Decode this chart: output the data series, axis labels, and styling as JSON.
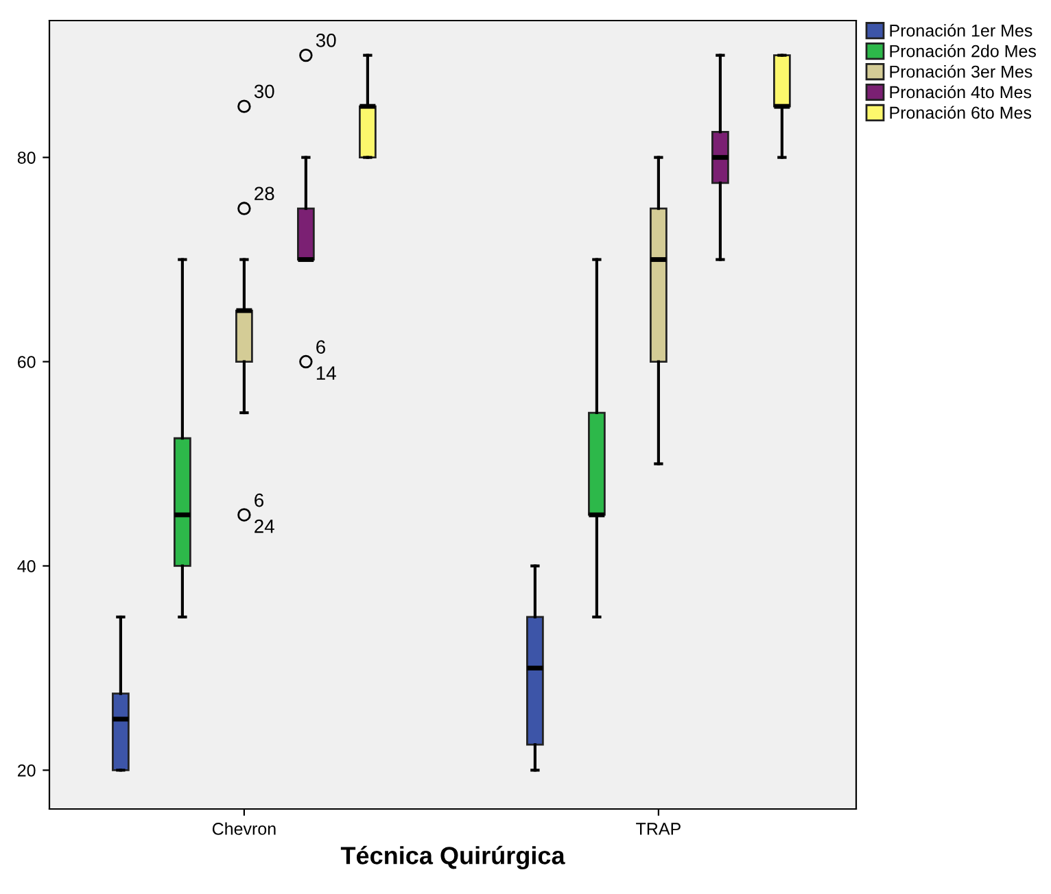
{
  "chart_data": {
    "type": "box",
    "xlabel": "Técnica Quirúrgica",
    "categories": [
      "Chevron",
      "TRAP"
    ],
    "ylim": [
      16.2,
      93.4
    ],
    "yticks": [
      20,
      40,
      60,
      80
    ],
    "grid": false,
    "legend": "top right",
    "series": [
      {
        "name": "Pronación 1er Mes",
        "color": "#3d55a8",
        "boxes": [
          {
            "low": 20,
            "q1": 20,
            "median": 25,
            "q3": 27.5,
            "high": 35
          },
          {
            "low": 20,
            "q1": 22.5,
            "median": 30,
            "q3": 35,
            "high": 40
          }
        ]
      },
      {
        "name": "Pronación 2do Mes",
        "color": "#2db84a",
        "boxes": [
          {
            "low": 35,
            "q1": 40,
            "median": 45,
            "q3": 52.5,
            "high": 70
          },
          {
            "low": 35,
            "q1": 45,
            "median": 45,
            "q3": 55,
            "high": 70
          }
        ]
      },
      {
        "name": "Pronación 3er Mes",
        "color": "#d4cc96",
        "boxes": [
          {
            "low": 55,
            "q1": 60,
            "median": 65,
            "q3": 65,
            "high": 70,
            "outliers": [
              75,
              85,
              45
            ]
          },
          {
            "low": 50,
            "q1": 60,
            "median": 70,
            "q3": 75,
            "high": 80
          }
        ]
      },
      {
        "name": "Pronación 4to Mes",
        "color": "#7b2073",
        "boxes": [
          {
            "low": 70,
            "q1": 70,
            "median": 70,
            "q3": 75,
            "high": 80,
            "outliers": [
              90,
              60
            ]
          },
          {
            "low": 70,
            "q1": 77.5,
            "median": 80,
            "q3": 82.5,
            "high": 90
          }
        ]
      },
      {
        "name": "Pronación 6to Mes",
        "color": "#fcf76c",
        "boxes": [
          {
            "low": 80,
            "q1": 80,
            "median": 85,
            "q3": 85,
            "high": 90
          },
          {
            "low": 80,
            "q1": 85,
            "median": 85,
            "q3": 90,
            "high": 90
          }
        ]
      }
    ],
    "annotations": [
      "28",
      "30",
      "6\n24",
      "30",
      "6\n14"
    ]
  }
}
